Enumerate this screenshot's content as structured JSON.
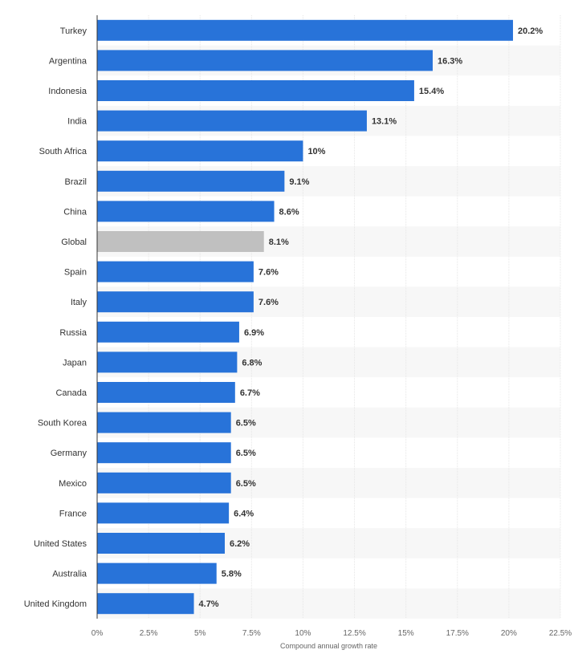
{
  "chart_data": {
    "type": "bar",
    "orientation": "horizontal",
    "categories": [
      "Turkey",
      "Argentina",
      "Indonesia",
      "India",
      "South Africa",
      "Brazil",
      "China",
      "Global",
      "Spain",
      "Italy",
      "Russia",
      "Japan",
      "Canada",
      "South Korea",
      "Germany",
      "Mexico",
      "France",
      "United States",
      "Australia",
      "United Kingdom"
    ],
    "values": [
      20.2,
      16.3,
      15.4,
      13.1,
      10,
      9.1,
      8.6,
      8.1,
      7.6,
      7.6,
      6.9,
      6.8,
      6.7,
      6.5,
      6.5,
      6.5,
      6.4,
      6.2,
      5.8,
      4.7
    ],
    "value_labels": [
      "20.2%",
      "16.3%",
      "15.4%",
      "13.1%",
      "10%",
      "9.1%",
      "8.6%",
      "8.1%",
      "7.6%",
      "7.6%",
      "6.9%",
      "6.8%",
      "6.7%",
      "6.5%",
      "6.5%",
      "6.5%",
      "6.4%",
      "6.2%",
      "5.8%",
      "4.7%"
    ],
    "xlabel": "Compound annual growth rate",
    "ylabel": "",
    "xlim": [
      0,
      22.5
    ],
    "xticks": [
      0,
      2.5,
      5,
      7.5,
      10,
      12.5,
      15,
      17.5,
      20,
      22.5
    ],
    "xtick_labels": [
      "0%",
      "2.5%",
      "5%",
      "7.5%",
      "10%",
      "12.5%",
      "15%",
      "17.5%",
      "20%",
      "22.5%"
    ],
    "grid": true,
    "alternating_row_shading": true,
    "colors": {
      "bar": "#2873d9",
      "highlight_bar": "#c0c0c0",
      "highlight_category": "Global",
      "row_shade": "#f7f7f7",
      "grid": "#e6e6e6",
      "axis": "#333333"
    }
  }
}
